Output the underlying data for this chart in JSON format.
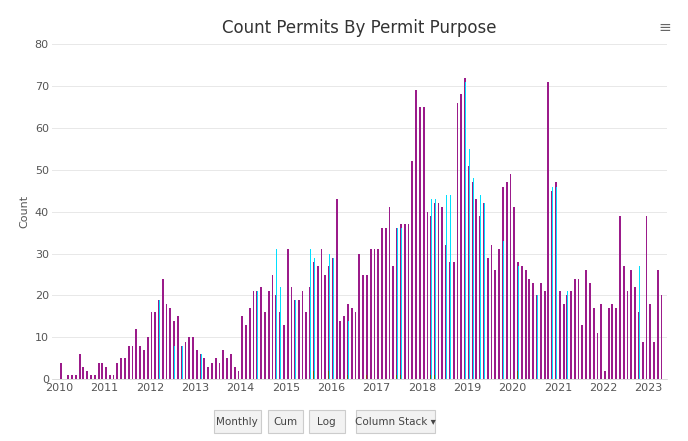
{
  "title": "Count Permits By Permit Purpose",
  "ylabel": "Count",
  "ylim": [
    0,
    80
  ],
  "yticks": [
    0,
    10,
    20,
    30,
    40,
    50,
    60,
    70,
    80
  ],
  "background_color": "#ffffff",
  "plot_bg_color": "#ffffff",
  "bar_color_main": "#9B1B8A",
  "bar_color_cyan": "#00DFFF",
  "bar_color_brown": "#8B4513",
  "grid_color": "#e8e8e8",
  "title_fontsize": 12,
  "axis_label_fontsize": 8,
  "tick_fontsize": 8,
  "monthly_data": {
    "2010-01": [
      4,
      0,
      0
    ],
    "2010-02": [
      0,
      0,
      0
    ],
    "2010-03": [
      1,
      0,
      0
    ],
    "2010-04": [
      1,
      0,
      0
    ],
    "2010-05": [
      1,
      0,
      0
    ],
    "2010-06": [
      6,
      0,
      0
    ],
    "2010-07": [
      3,
      0,
      0
    ],
    "2010-08": [
      2,
      0,
      0
    ],
    "2010-09": [
      1,
      0,
      0
    ],
    "2010-10": [
      1,
      0,
      0
    ],
    "2010-11": [
      4,
      0,
      0
    ],
    "2010-12": [
      4,
      0,
      0
    ],
    "2011-01": [
      3,
      0,
      0
    ],
    "2011-02": [
      1,
      0,
      0
    ],
    "2011-03": [
      1,
      0,
      0
    ],
    "2011-04": [
      4,
      0,
      0
    ],
    "2011-05": [
      5,
      0,
      0
    ],
    "2011-06": [
      5,
      0,
      0
    ],
    "2011-07": [
      8,
      0,
      0
    ],
    "2011-08": [
      8,
      0,
      0
    ],
    "2011-09": [
      12,
      0,
      0
    ],
    "2011-10": [
      8,
      0,
      0
    ],
    "2011-11": [
      7,
      0,
      0
    ],
    "2011-12": [
      10,
      10,
      0
    ],
    "2012-01": [
      16,
      0,
      0
    ],
    "2012-02": [
      16,
      19,
      0
    ],
    "2012-03": [
      19,
      19,
      0
    ],
    "2012-04": [
      24,
      0,
      0
    ],
    "2012-05": [
      18,
      0,
      0
    ],
    "2012-06": [
      17,
      0,
      0
    ],
    "2012-07": [
      14,
      8,
      0
    ],
    "2012-08": [
      15,
      0,
      0
    ],
    "2012-09": [
      8,
      8,
      0
    ],
    "2012-10": [
      9,
      0,
      0
    ],
    "2012-11": [
      10,
      0,
      0
    ],
    "2012-12": [
      10,
      0,
      0
    ],
    "2013-01": [
      7,
      0,
      0
    ],
    "2013-02": [
      6,
      6,
      0
    ],
    "2013-03": [
      5,
      0,
      0
    ],
    "2013-04": [
      3,
      0,
      0
    ],
    "2013-05": [
      4,
      0,
      0
    ],
    "2013-06": [
      5,
      5,
      0
    ],
    "2013-07": [
      4,
      0,
      0
    ],
    "2013-08": [
      7,
      0,
      0
    ],
    "2013-09": [
      5,
      0,
      0
    ],
    "2013-10": [
      6,
      0,
      0
    ],
    "2013-11": [
      3,
      0,
      0
    ],
    "2013-12": [
      2,
      0,
      0
    ],
    "2014-01": [
      15,
      0,
      0
    ],
    "2014-02": [
      13,
      0,
      0
    ],
    "2014-03": [
      17,
      0,
      0
    ],
    "2014-04": [
      21,
      0,
      0
    ],
    "2014-05": [
      21,
      21,
      0
    ],
    "2014-06": [
      22,
      0,
      0
    ],
    "2014-07": [
      16,
      23,
      0
    ],
    "2014-08": [
      21,
      33,
      0
    ],
    "2014-09": [
      25,
      31,
      0
    ],
    "2014-10": [
      20,
      31,
      0
    ],
    "2014-11": [
      16,
      22,
      0
    ],
    "2014-12": [
      13,
      22,
      0
    ],
    "2015-01": [
      31,
      22,
      0
    ],
    "2015-02": [
      22,
      32,
      0
    ],
    "2015-03": [
      19,
      19,
      0
    ],
    "2015-04": [
      19,
      0,
      0
    ],
    "2015-05": [
      21,
      21,
      0
    ],
    "2015-06": [
      16,
      22,
      0
    ],
    "2015-07": [
      22,
      31,
      0
    ],
    "2015-08": [
      28,
      29,
      2
    ],
    "2015-09": [
      27,
      29,
      2
    ],
    "2015-10": [
      31,
      0,
      0
    ],
    "2015-11": [
      25,
      25,
      0
    ],
    "2015-12": [
      27,
      30,
      2
    ],
    "2016-01": [
      29,
      29,
      0
    ],
    "2016-02": [
      43,
      0,
      0
    ],
    "2016-03": [
      14,
      19,
      1
    ],
    "2016-04": [
      15,
      18,
      0
    ],
    "2016-05": [
      18,
      14,
      1
    ],
    "2016-06": [
      17,
      0,
      0
    ],
    "2016-07": [
      16,
      17,
      1
    ],
    "2016-08": [
      30,
      29,
      0
    ],
    "2016-09": [
      25,
      0,
      1
    ],
    "2016-10": [
      25,
      0,
      1
    ],
    "2016-11": [
      31,
      0,
      0
    ],
    "2016-12": [
      31,
      0,
      1
    ],
    "2017-01": [
      31,
      0,
      0
    ],
    "2017-02": [
      36,
      0,
      1
    ],
    "2017-03": [
      36,
      40,
      0
    ],
    "2017-04": [
      41,
      0,
      1
    ],
    "2017-05": [
      27,
      39,
      0
    ],
    "2017-06": [
      36,
      36,
      1
    ],
    "2017-07": [
      37,
      36,
      1
    ],
    "2017-08": [
      37,
      36,
      1
    ],
    "2017-09": [
      37,
      36,
      1
    ],
    "2017-10": [
      52,
      0,
      0
    ],
    "2017-11": [
      69,
      0,
      0
    ],
    "2017-12": [
      65,
      46,
      0
    ],
    "2018-01": [
      65,
      46,
      2
    ],
    "2018-02": [
      40,
      43,
      3
    ],
    "2018-03": [
      39,
      43,
      1
    ],
    "2018-04": [
      42,
      43,
      1
    ],
    "2018-05": [
      42,
      43,
      0
    ],
    "2018-06": [
      41,
      43,
      1
    ],
    "2018-07": [
      32,
      44,
      0
    ],
    "2018-08": [
      28,
      44,
      0
    ],
    "2018-09": [
      28,
      0,
      0
    ],
    "2018-10": [
      66,
      67,
      0
    ],
    "2018-11": [
      68,
      67,
      0
    ],
    "2018-12": [
      72,
      71,
      0
    ],
    "2019-01": [
      51,
      55,
      0
    ],
    "2019-02": [
      47,
      48,
      0
    ],
    "2019-03": [
      43,
      52,
      0
    ],
    "2019-04": [
      39,
      44,
      0
    ],
    "2019-05": [
      42,
      42,
      0
    ],
    "2019-06": [
      29,
      31,
      0
    ],
    "2019-07": [
      32,
      40,
      0
    ],
    "2019-08": [
      26,
      41,
      0
    ],
    "2019-09": [
      31,
      0,
      0
    ],
    "2019-10": [
      46,
      33,
      0
    ],
    "2019-11": [
      47,
      33,
      0
    ],
    "2019-12": [
      49,
      33,
      0
    ],
    "2020-01": [
      41,
      0,
      0
    ],
    "2020-02": [
      28,
      27,
      2
    ],
    "2020-03": [
      27,
      27,
      2
    ],
    "2020-04": [
      26,
      0,
      0
    ],
    "2020-05": [
      24,
      0,
      0
    ],
    "2020-06": [
      23,
      0,
      0
    ],
    "2020-07": [
      20,
      20,
      0
    ],
    "2020-08": [
      23,
      25,
      0
    ],
    "2020-09": [
      21,
      27,
      0
    ],
    "2020-10": [
      71,
      0,
      0
    ],
    "2020-11": [
      45,
      46,
      0
    ],
    "2020-12": [
      47,
      46,
      0
    ],
    "2021-01": [
      21,
      0,
      0
    ],
    "2021-02": [
      18,
      21,
      0
    ],
    "2021-03": [
      20,
      21,
      0
    ],
    "2021-04": [
      21,
      0,
      0
    ],
    "2021-05": [
      24,
      0,
      0
    ],
    "2021-06": [
      24,
      0,
      0
    ],
    "2021-07": [
      13,
      0,
      0
    ],
    "2021-08": [
      26,
      0,
      0
    ],
    "2021-09": [
      23,
      0,
      0
    ],
    "2021-10": [
      17,
      0,
      0
    ],
    "2021-11": [
      11,
      0,
      0
    ],
    "2021-12": [
      18,
      0,
      0
    ],
    "2022-01": [
      2,
      0,
      0
    ],
    "2022-02": [
      17,
      0,
      0
    ],
    "2022-03": [
      18,
      0,
      0
    ],
    "2022-04": [
      17,
      0,
      0
    ],
    "2022-05": [
      39,
      0,
      0
    ],
    "2022-06": [
      27,
      27,
      1
    ],
    "2022-07": [
      21,
      0,
      0
    ],
    "2022-08": [
      26,
      0,
      0
    ],
    "2022-09": [
      22,
      0,
      0
    ],
    "2022-10": [
      16,
      27,
      0
    ],
    "2022-11": [
      9,
      15,
      0
    ],
    "2022-12": [
      39,
      0,
      1
    ],
    "2023-01": [
      18,
      19,
      2
    ],
    "2023-02": [
      9,
      19,
      0
    ],
    "2023-03": [
      26,
      0,
      0
    ],
    "2023-04": [
      20,
      0,
      0
    ]
  },
  "footer_buttons": [
    "Monthly",
    "Cum",
    "Log",
    "Column Stack ▾"
  ],
  "hamburger_icon": "≡"
}
